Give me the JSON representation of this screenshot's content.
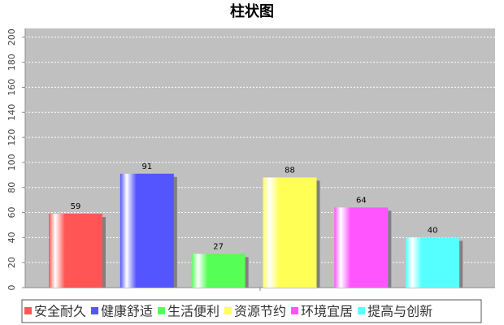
{
  "chart_data": {
    "type": "bar",
    "title": "柱状图",
    "categories": [
      null
    ],
    "series": [
      {
        "name": "安全耐久",
        "color": "#ff5555",
        "values": [
          59
        ]
      },
      {
        "name": "健康舒适",
        "color": "#5555ff",
        "values": [
          91
        ]
      },
      {
        "name": "生活便利",
        "color": "#55ff55",
        "values": [
          27
        ]
      },
      {
        "name": "资源节约",
        "color": "#ffff55",
        "values": [
          88
        ]
      },
      {
        "name": "环境宜居",
        "color": "#ff55ff",
        "values": [
          64
        ]
      },
      {
        "name": "提高与创新",
        "color": "#55ffff",
        "values": [
          40
        ]
      }
    ],
    "ylim": [
      0,
      207
    ],
    "yticks": [
      0,
      20,
      40,
      60,
      80,
      100,
      120,
      140,
      160,
      180,
      200
    ],
    "grid": true
  }
}
